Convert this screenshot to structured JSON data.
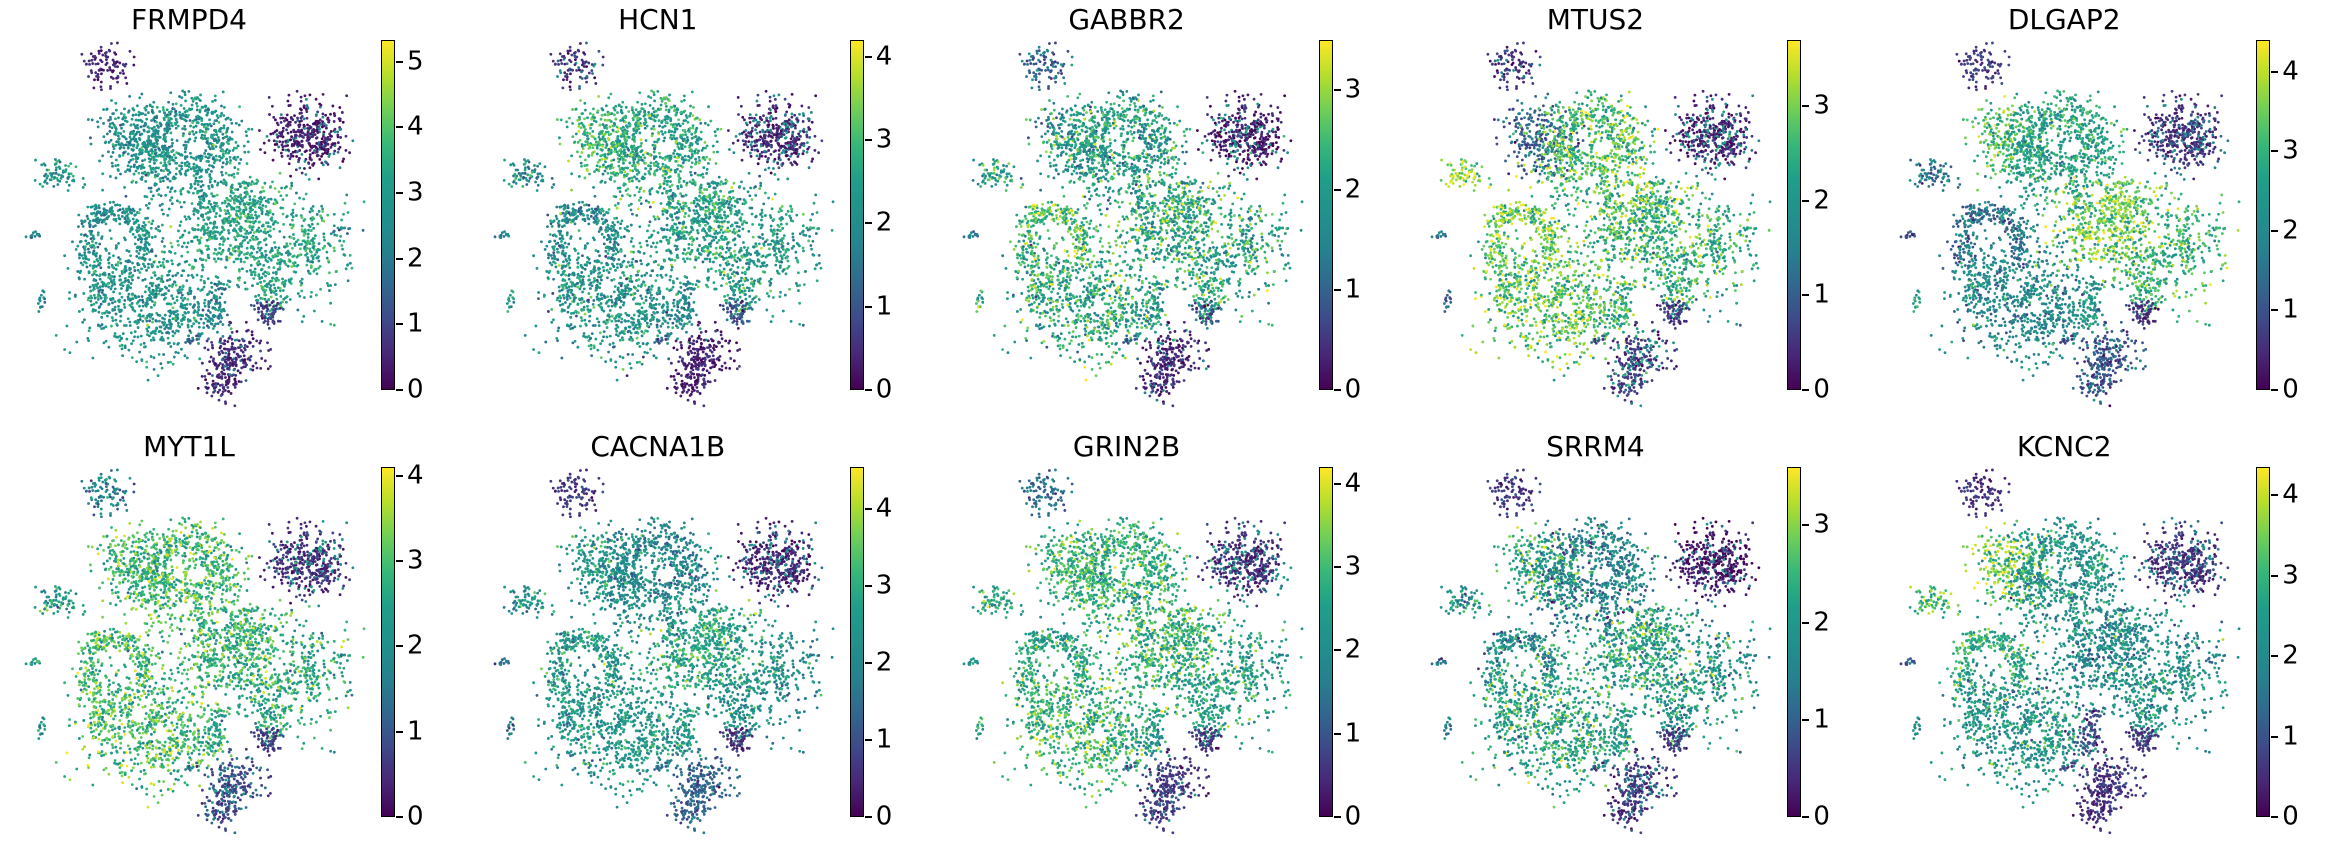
{
  "figure": {
    "description": "Grid of 10 UMAP single-cell gene expression feature plots (scanpy style), viridis colormap, one colorbar per panel",
    "background": "#ffffff",
    "rows": 2,
    "cols": 5
  },
  "chart_data": {
    "type": "scatter",
    "layout": "2x5 grid of UMAP embeddings colored by log-normalized gene expression",
    "legend_position": "right colorbar per panel",
    "grid": false,
    "axes": "hidden (no axis lines, ticks or labels on scatter panels)",
    "colormap": "viridis",
    "colormap_stops": [
      [
        0.0,
        "#440154"
      ],
      [
        0.1,
        "#482878"
      ],
      [
        0.2,
        "#3e4a89"
      ],
      [
        0.3,
        "#31688e"
      ],
      [
        0.4,
        "#26828e"
      ],
      [
        0.5,
        "#21918c"
      ],
      [
        0.6,
        "#1f9e89"
      ],
      [
        0.7,
        "#35b779"
      ],
      [
        0.8,
        "#6ece58"
      ],
      [
        0.9,
        "#b5de2b"
      ],
      [
        1.0,
        "#fde725"
      ]
    ],
    "point_color_low": "#440154",
    "point_color_high": "#fde725",
    "embedding_clusters": [
      {
        "id": "A",
        "note": "small top-left cluster",
        "blobs": [
          [
            0.265,
            0.085,
            0.034,
            0.028,
            90
          ]
        ]
      },
      {
        "id": "B1",
        "note": "left lobe of large upper-middle cluster",
        "blobs": [
          [
            0.345,
            0.275,
            0.055,
            0.046,
            240
          ]
        ]
      },
      {
        "id": "B2",
        "note": "main body of large upper-middle cluster",
        "blobs": [
          [
            0.475,
            0.325,
            0.085,
            0.072,
            480
          ],
          [
            0.52,
            0.205,
            0.038,
            0.028,
            80
          ],
          [
            0.435,
            0.225,
            0.03,
            0.022,
            55
          ],
          [
            0.585,
            0.275,
            0.034,
            0.042,
            100
          ],
          [
            0.41,
            0.3,
            0.028,
            0.028,
            60
          ],
          [
            0.535,
            0.425,
            0.01,
            0.028,
            22,
            15
          ]
        ],
        "holes": [
          [
            0.46,
            0.275,
            0.024
          ],
          [
            0.525,
            0.3,
            0.02
          ],
          [
            0.48,
            0.385,
            0.016
          ]
        ]
      },
      {
        "id": "C",
        "note": "round right cluster, low expression in all genes",
        "blobs": [
          [
            0.825,
            0.265,
            0.052,
            0.045,
            360
          ],
          [
            0.868,
            0.3,
            0.018,
            0.014,
            36
          ]
        ]
      },
      {
        "id": "D",
        "note": "small left cluster",
        "blobs": [
          [
            0.135,
            0.37,
            0.032,
            0.02,
            70
          ]
        ]
      },
      {
        "id": "E1",
        "note": "C-shaped arch center-left",
        "arcs": [
          [
            0.295,
            0.545,
            0.085,
            -35,
            215,
            0.016,
            240
          ]
        ],
        "blobs": [
          [
            0.245,
            0.47,
            0.02,
            0.016,
            30
          ]
        ]
      },
      {
        "id": "E2",
        "note": "large bottom-left cluster",
        "blobs": [
          [
            0.385,
            0.695,
            0.1,
            0.082,
            600
          ],
          [
            0.27,
            0.64,
            0.042,
            0.05,
            140
          ],
          [
            0.47,
            0.735,
            0.038,
            0.032,
            90
          ]
        ],
        "holes": [
          [
            0.36,
            0.665,
            0.021
          ],
          [
            0.425,
            0.72,
            0.017
          ],
          [
            0.325,
            0.73,
            0.014
          ]
        ]
      },
      {
        "id": "F1",
        "note": "upper-left lobe of center-right cluster",
        "blobs": [
          [
            0.625,
            0.5,
            0.082,
            0.062,
            400
          ],
          [
            0.668,
            0.432,
            0.028,
            0.022,
            60
          ],
          [
            0.556,
            0.52,
            0.024,
            0.018,
            45
          ]
        ]
      },
      {
        "id": "F2",
        "note": "lower-right lobe of center-right cluster",
        "blobs": [
          [
            0.77,
            0.565,
            0.088,
            0.082,
            380
          ],
          [
            0.73,
            0.675,
            0.028,
            0.033,
            80
          ],
          [
            0.845,
            0.56,
            0.018,
            0.028,
            50
          ]
        ],
        "holes": [
          [
            0.748,
            0.525,
            0.034
          ],
          [
            0.77,
            0.625,
            0.018
          ]
        ]
      },
      {
        "id": "G",
        "note": "small tadpole cluster bottom-center",
        "blobs": [
          [
            0.565,
            0.73,
            0.024,
            0.028,
            60
          ],
          [
            0.582,
            0.672,
            0.009,
            0.02,
            20,
            15
          ]
        ]
      },
      {
        "id": "H",
        "note": "small dark blob right of G",
        "blobs": [
          [
            0.72,
            0.725,
            0.021,
            0.02,
            60
          ]
        ]
      },
      {
        "id": "I",
        "note": "bottom dark cluster with lower knob",
        "blobs": [
          [
            0.625,
            0.838,
            0.043,
            0.033,
            170
          ],
          [
            0.588,
            0.917,
            0.028,
            0.023,
            75
          ],
          [
            0.607,
            0.878,
            0.012,
            0.018,
            20
          ]
        ]
      },
      {
        "id": "J1",
        "note": "tiny far-left blob",
        "blobs": [
          [
            0.065,
            0.525,
            0.013,
            0.007,
            12
          ]
        ]
      },
      {
        "id": "J2",
        "note": "tiny lower-left blob",
        "blobs": [
          [
            0.093,
            0.705,
            0.008,
            0.013,
            14
          ]
        ]
      },
      {
        "id": "J3",
        "note": "tiny tilted dash bottom-center",
        "blobs": [
          [
            0.505,
            0.803,
            0.013,
            0.005,
            10,
            -35
          ]
        ]
      },
      {
        "id": "J4",
        "note": "tiny dots far right",
        "blobs": [
          [
            0.932,
            0.515,
            0.014,
            0.005,
            8
          ],
          [
            0.898,
            0.518,
            0.004,
            0.004,
            3
          ]
        ]
      }
    ],
    "panels": [
      {
        "title": "FRMPD4",
        "vmax": 5.33,
        "ticks": [
          0,
          1,
          2,
          3,
          4,
          5
        ],
        "expr": {
          "A": 0.5,
          "B1": 2.6,
          "B2": 2.8,
          "C": 0.35,
          "D": 2.8,
          "E1": 2.6,
          "E2": 2.8,
          "F1": 3.2,
          "F2": 3.3,
          "G": 2.2,
          "H": 0.8,
          "I": 0.5,
          "J1": 2.2,
          "J2": 2.5,
          "J3": 1.2,
          "J4": 2.2
        },
        "bright": {
          "C": [
            2.2,
            0.22
          ],
          "I": [
            1.8,
            0.1
          ]
        }
      },
      {
        "title": "HCN1",
        "vmax": 4.2,
        "ticks": [
          0,
          1,
          2,
          3,
          4
        ],
        "expr": {
          "A": 0.5,
          "B1": 2.9,
          "B2": 2.6,
          "C": 0.35,
          "D": 2.0,
          "E1": 1.9,
          "E2": 2.2,
          "F1": 2.5,
          "F2": 2.4,
          "G": 1.9,
          "H": 1.0,
          "I": 0.35,
          "J1": 1.6,
          "J2": 2.4,
          "J3": 1.0,
          "J4": 2.0
        },
        "bright": {
          "A": [
            1.8,
            0.2
          ],
          "C": [
            1.9,
            0.3
          ]
        }
      },
      {
        "title": "GABBR2",
        "vmax": 3.5,
        "ticks": [
          0,
          1,
          2,
          3
        ],
        "expr": {
          "A": 0.8,
          "B1": 1.9,
          "B2": 2.0,
          "C": 0.22,
          "D": 2.1,
          "E1": 2.5,
          "E2": 2.2,
          "F1": 2.3,
          "F2": 2.1,
          "G": 2.0,
          "H": 0.6,
          "I": 0.35,
          "J1": 1.4,
          "J2": 2.0,
          "J3": 0.8,
          "J4": 1.8
        },
        "bright": {
          "A": [
            1.6,
            0.3
          ],
          "C": [
            1.8,
            0.25
          ],
          "H": [
            1.6,
            0.25
          ],
          "I": [
            1.5,
            0.15
          ]
        }
      },
      {
        "title": "MTUS2",
        "vmax": 3.7,
        "ticks": [
          0,
          1,
          2,
          3
        ],
        "expr": {
          "A": 0.45,
          "B1": 1.0,
          "B2": 2.7,
          "C": 0.3,
          "D": 3.1,
          "E1": 2.9,
          "E2": 2.8,
          "F1": 2.6,
          "F2": 2.4,
          "G": 2.4,
          "H": 0.55,
          "I": 0.55,
          "J1": 1.4,
          "J2": 1.0,
          "J3": 0.7,
          "J4": 2.2
        },
        "bright": {
          "A": [
            1.7,
            0.2
          ],
          "C": [
            1.7,
            0.3
          ],
          "I": [
            2.0,
            0.25
          ]
        }
      },
      {
        "title": "DLGAP2",
        "vmax": 4.4,
        "ticks": [
          0,
          1,
          2,
          3,
          4
        ],
        "expr": {
          "A": 0.7,
          "B1": 3.2,
          "B2": 2.6,
          "C": 0.45,
          "D": 1.6,
          "E1": 1.5,
          "E2": 2.0,
          "F1": 3.6,
          "F2": 3.0,
          "G": 2.4,
          "H": 0.55,
          "I": 0.9,
          "J1": 1.0,
          "J2": 3.0,
          "J3": 0.7,
          "J4": 3.0
        },
        "bright": {
          "C": [
            1.6,
            0.3
          ],
          "I": [
            1.8,
            0.3
          ]
        }
      },
      {
        "title": "MYT1L",
        "vmax": 4.1,
        "ticks": [
          0,
          1,
          2,
          3,
          4
        ],
        "expr": {
          "A": 1.7,
          "B1": 2.8,
          "B2": 2.9,
          "C": 0.45,
          "D": 2.3,
          "E1": 2.9,
          "E2": 2.9,
          "F1": 2.8,
          "F2": 2.6,
          "G": 2.4,
          "H": 0.65,
          "I": 0.75,
          "J1": 2.2,
          "J2": 2.0,
          "J3": 1.6,
          "J4": 2.2
        },
        "bright": {
          "C": [
            2.0,
            0.25
          ],
          "I": [
            1.8,
            0.25
          ]
        }
      },
      {
        "title": "CACNA1B",
        "vmax": 4.55,
        "ticks": [
          0,
          1,
          2,
          3,
          4
        ],
        "expr": {
          "A": 0.65,
          "B1": 2.5,
          "B2": 2.1,
          "C": 0.4,
          "D": 2.3,
          "E1": 2.6,
          "E2": 2.4,
          "F1": 2.9,
          "F2": 2.3,
          "G": 2.5,
          "H": 0.55,
          "I": 1.3,
          "J1": 1.8,
          "J2": 1.5,
          "J3": 1.3,
          "J4": 2.3
        },
        "bright": {
          "C": [
            2.0,
            0.25
          ]
        }
      },
      {
        "title": "GRIN2B",
        "vmax": 4.2,
        "ticks": [
          0,
          1,
          2,
          3,
          4
        ],
        "expr": {
          "A": 1.4,
          "B1": 3.0,
          "B2": 2.8,
          "C": 0.45,
          "D": 2.6,
          "E1": 2.5,
          "E2": 2.9,
          "F1": 2.9,
          "F2": 2.5,
          "G": 2.1,
          "H": 0.55,
          "I": 0.6,
          "J1": 2.0,
          "J2": 2.2,
          "J3": 1.3,
          "J4": 2.0
        },
        "bright": {
          "C": [
            2.0,
            0.3
          ],
          "I": [
            1.6,
            0.15
          ]
        }
      },
      {
        "title": "SRRM4",
        "vmax": 3.6,
        "ticks": [
          0,
          1,
          2,
          3
        ],
        "expr": {
          "A": 0.55,
          "B1": 2.4,
          "B2": 1.6,
          "C": 0.18,
          "D": 1.8,
          "E1": 1.8,
          "E2": 2.2,
          "F1": 2.2,
          "F2": 1.9,
          "G": 1.9,
          "H": 0.55,
          "I": 0.45,
          "J1": 1.1,
          "J2": 1.4,
          "J3": 0.9,
          "J4": 1.8
        },
        "bright": {
          "C": [
            1.5,
            0.18
          ],
          "I": [
            1.4,
            0.2
          ]
        }
      },
      {
        "title": "KCNC2",
        "vmax": 4.35,
        "ticks": [
          0,
          1,
          2,
          3,
          4
        ],
        "expr": {
          "A": 0.55,
          "B1": 3.6,
          "B2": 2.3,
          "C": 0.55,
          "D": 3.1,
          "E1": 2.9,
          "E2": 2.3,
          "F1": 2.0,
          "F2": 2.3,
          "G": 0.9,
          "H": 0.55,
          "I": 0.55,
          "J1": 0.9,
          "J2": 2.0,
          "J3": 0.9,
          "J4": 2.0
        },
        "bright": {
          "C": [
            1.8,
            0.25
          ]
        }
      }
    ]
  }
}
